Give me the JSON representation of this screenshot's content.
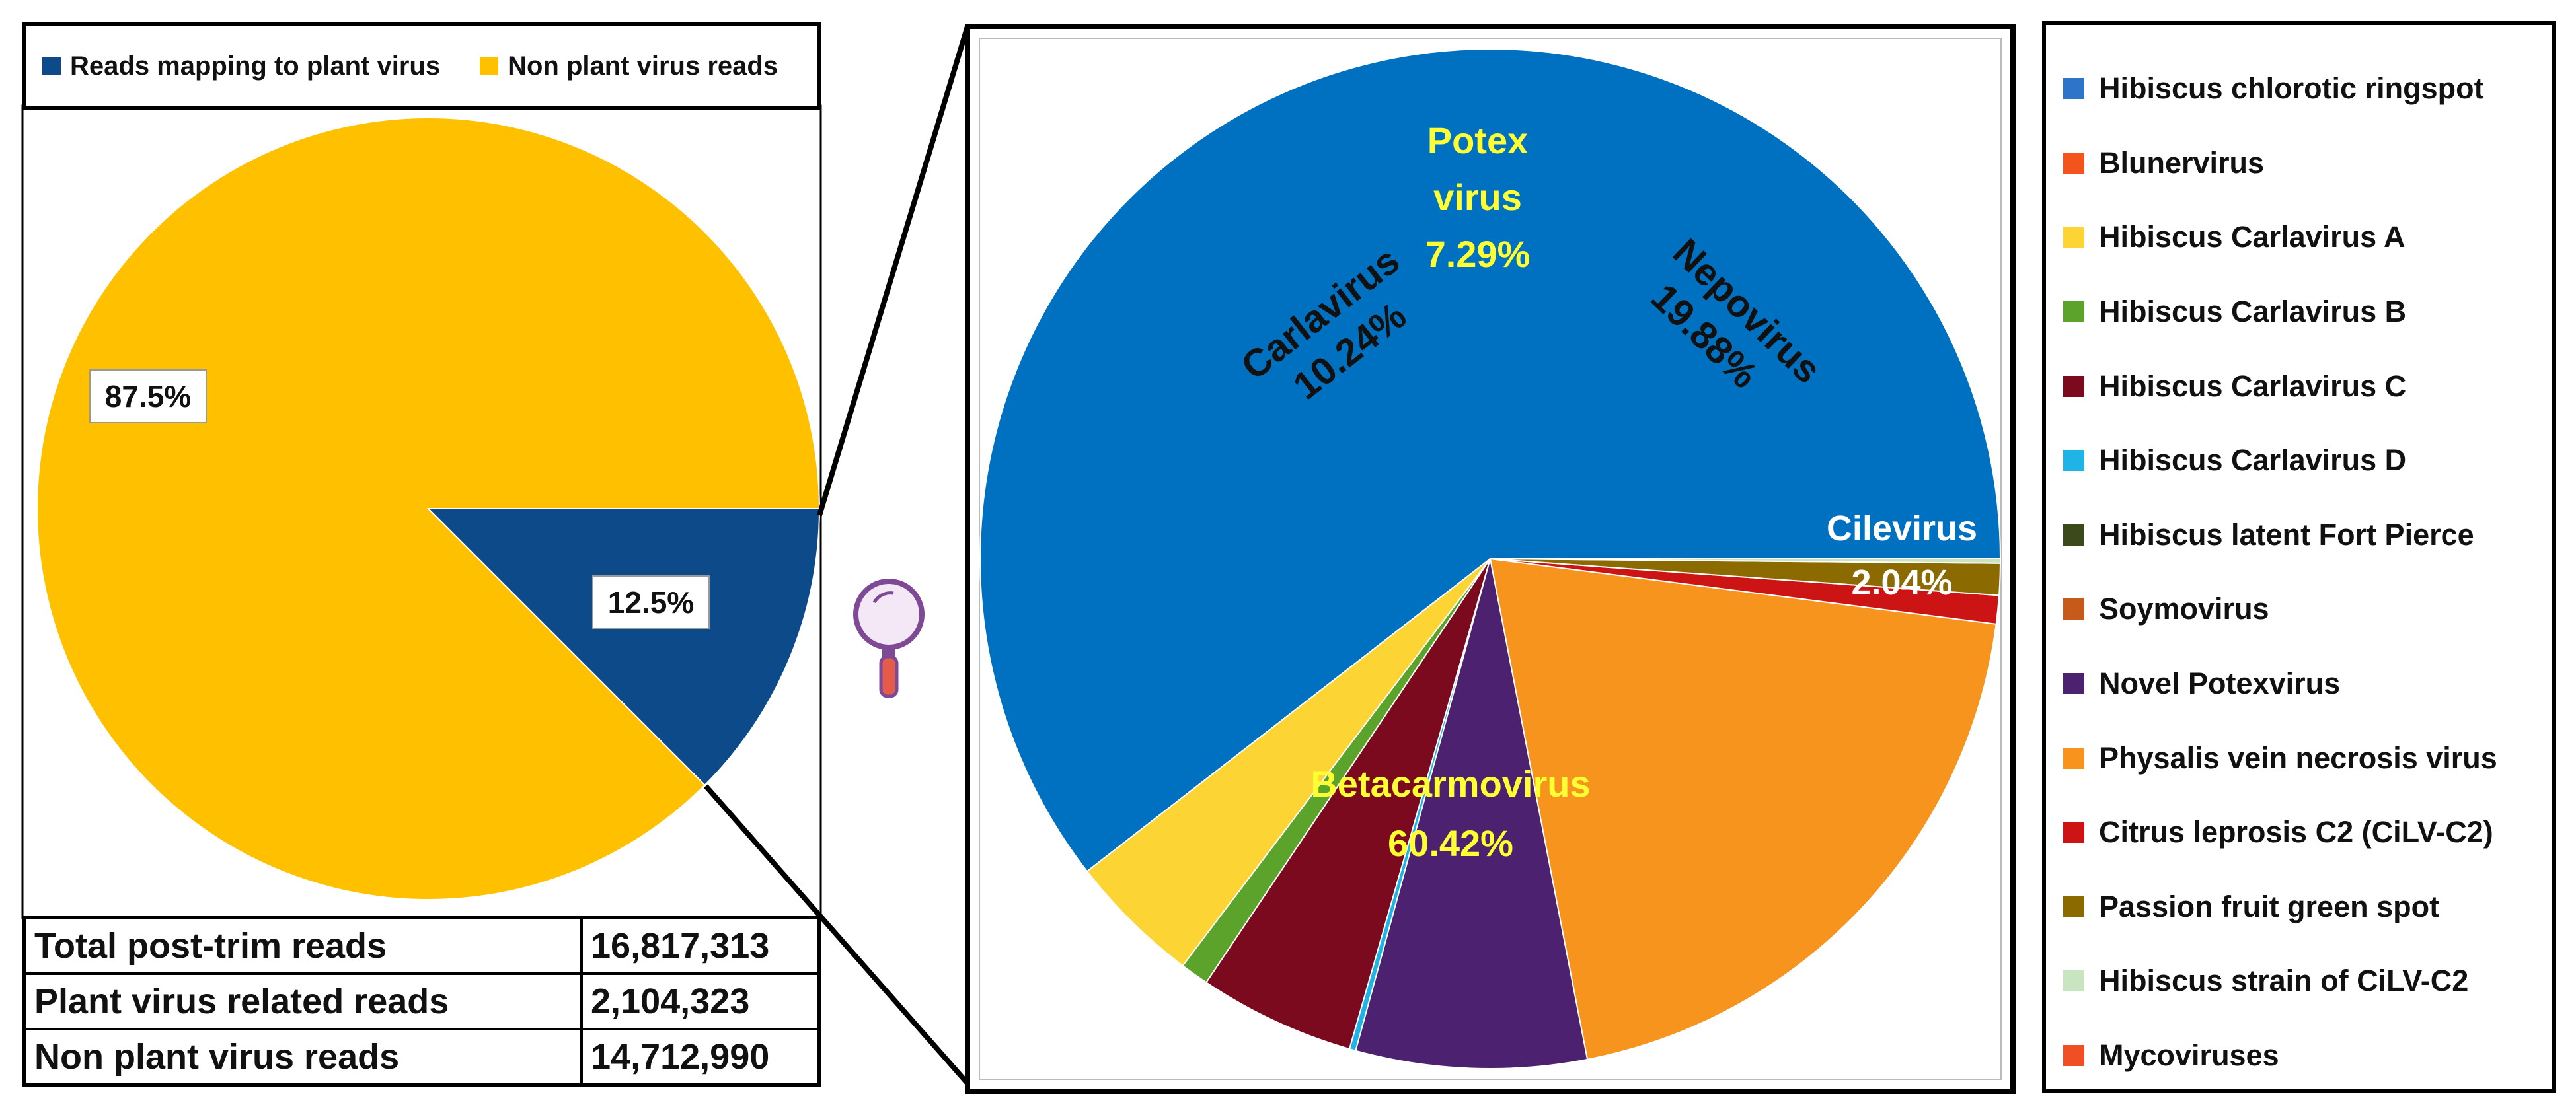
{
  "overview_chart": {
    "legend": [
      {
        "label": "Reads mapping to plant virus",
        "color": "#0D4A8A"
      },
      {
        "label": "Non plant virus reads",
        "color": "#FFC000"
      }
    ],
    "stats": [
      {
        "label": "Total post-trim reads",
        "value": "16,817,313"
      },
      {
        "label": "Plant virus related reads",
        "value": "2,104,323"
      },
      {
        "label": "Non plant virus reads",
        "value": "14,712,990"
      }
    ]
  },
  "detail_legend": [
    {
      "label": "Hibiscus chlorotic ringspot",
      "color": "#2E75C9"
    },
    {
      "label": "Blunervirus",
      "color": "#F2541C"
    },
    {
      "label": "Hibiscus Carlavirus A",
      "color": "#FCD535"
    },
    {
      "label": "Hibiscus Carlavirus B",
      "color": "#5BA32B"
    },
    {
      "label": "Hibiscus Carlavirus C",
      "color": "#7B0A1F"
    },
    {
      "label": "Hibiscus Carlavirus D",
      "color": "#1FB4E6"
    },
    {
      "label": "Hibiscus latent Fort Pierce",
      "color": "#3A4A1A"
    },
    {
      "label": "Soymovirus",
      "color": "#C55A1A"
    },
    {
      "label": "Novel Potexvirus",
      "color": "#4B2170"
    },
    {
      "label": "Physalis vein necrosis virus",
      "color": "#F7941D"
    },
    {
      "label": "Citrus leprosis C2 (CiLV-C2)",
      "color": "#CC1414"
    },
    {
      "label": "Passion fruit green spot",
      "color": "#8B6A00"
    },
    {
      "label": "Hibiscus strain of CiLV-C2",
      "color": "#C9E4C0"
    },
    {
      "label": "Mycoviruses",
      "color": "#F04E23"
    }
  ],
  "chart_data": [
    {
      "type": "pie",
      "title": "",
      "slices": [
        {
          "name": "Reads mapping to plant virus",
          "value": 12.5,
          "label": "12.5%",
          "color": "#0D4A8A"
        },
        {
          "name": "Non plant virus reads",
          "value": 87.5,
          "label": "87.5%",
          "color": "#FFC000"
        }
      ]
    },
    {
      "type": "pie",
      "title": "",
      "slices": [
        {
          "name": "Hibiscus chlorotic ringspot",
          "value": 60.42,
          "color": "#0070C0"
        },
        {
          "name": "Hibiscus Carlavirus A",
          "value": 4.2,
          "color": "#FCD535"
        },
        {
          "name": "Hibiscus Carlavirus B",
          "value": 0.9,
          "color": "#5BA32B"
        },
        {
          "name": "Hibiscus Carlavirus C",
          "value": 4.94,
          "color": "#7B0A1F"
        },
        {
          "name": "Hibiscus Carlavirus D",
          "value": 0.2,
          "color": "#1FB4E6"
        },
        {
          "name": "Novel Potexvirus",
          "value": 7.29,
          "color": "#4B2170"
        },
        {
          "name": "Physalis vein necrosis virus",
          "value": 19.88,
          "color": "#F7941D"
        },
        {
          "name": "Citrus leprosis C2 (CiLV-C2)",
          "value": 0.9,
          "color": "#CC1414"
        },
        {
          "name": "Passion fruit green spot",
          "value": 1.0,
          "color": "#8B6A00"
        },
        {
          "name": "Hibiscus strain of CiLV-C2",
          "value": 0.14,
          "color": "#C9E4C0"
        }
      ],
      "group_labels": [
        {
          "name": "Betacarmovirus",
          "value": "60.42%"
        },
        {
          "name": "Carlavirus",
          "value": "10.24%"
        },
        {
          "name": "Potex virus",
          "value": "7.29%"
        },
        {
          "name": "Nepovirus",
          "value": "19.88%"
        },
        {
          "name": "Cilevirus",
          "value": "2.04%"
        }
      ]
    }
  ]
}
